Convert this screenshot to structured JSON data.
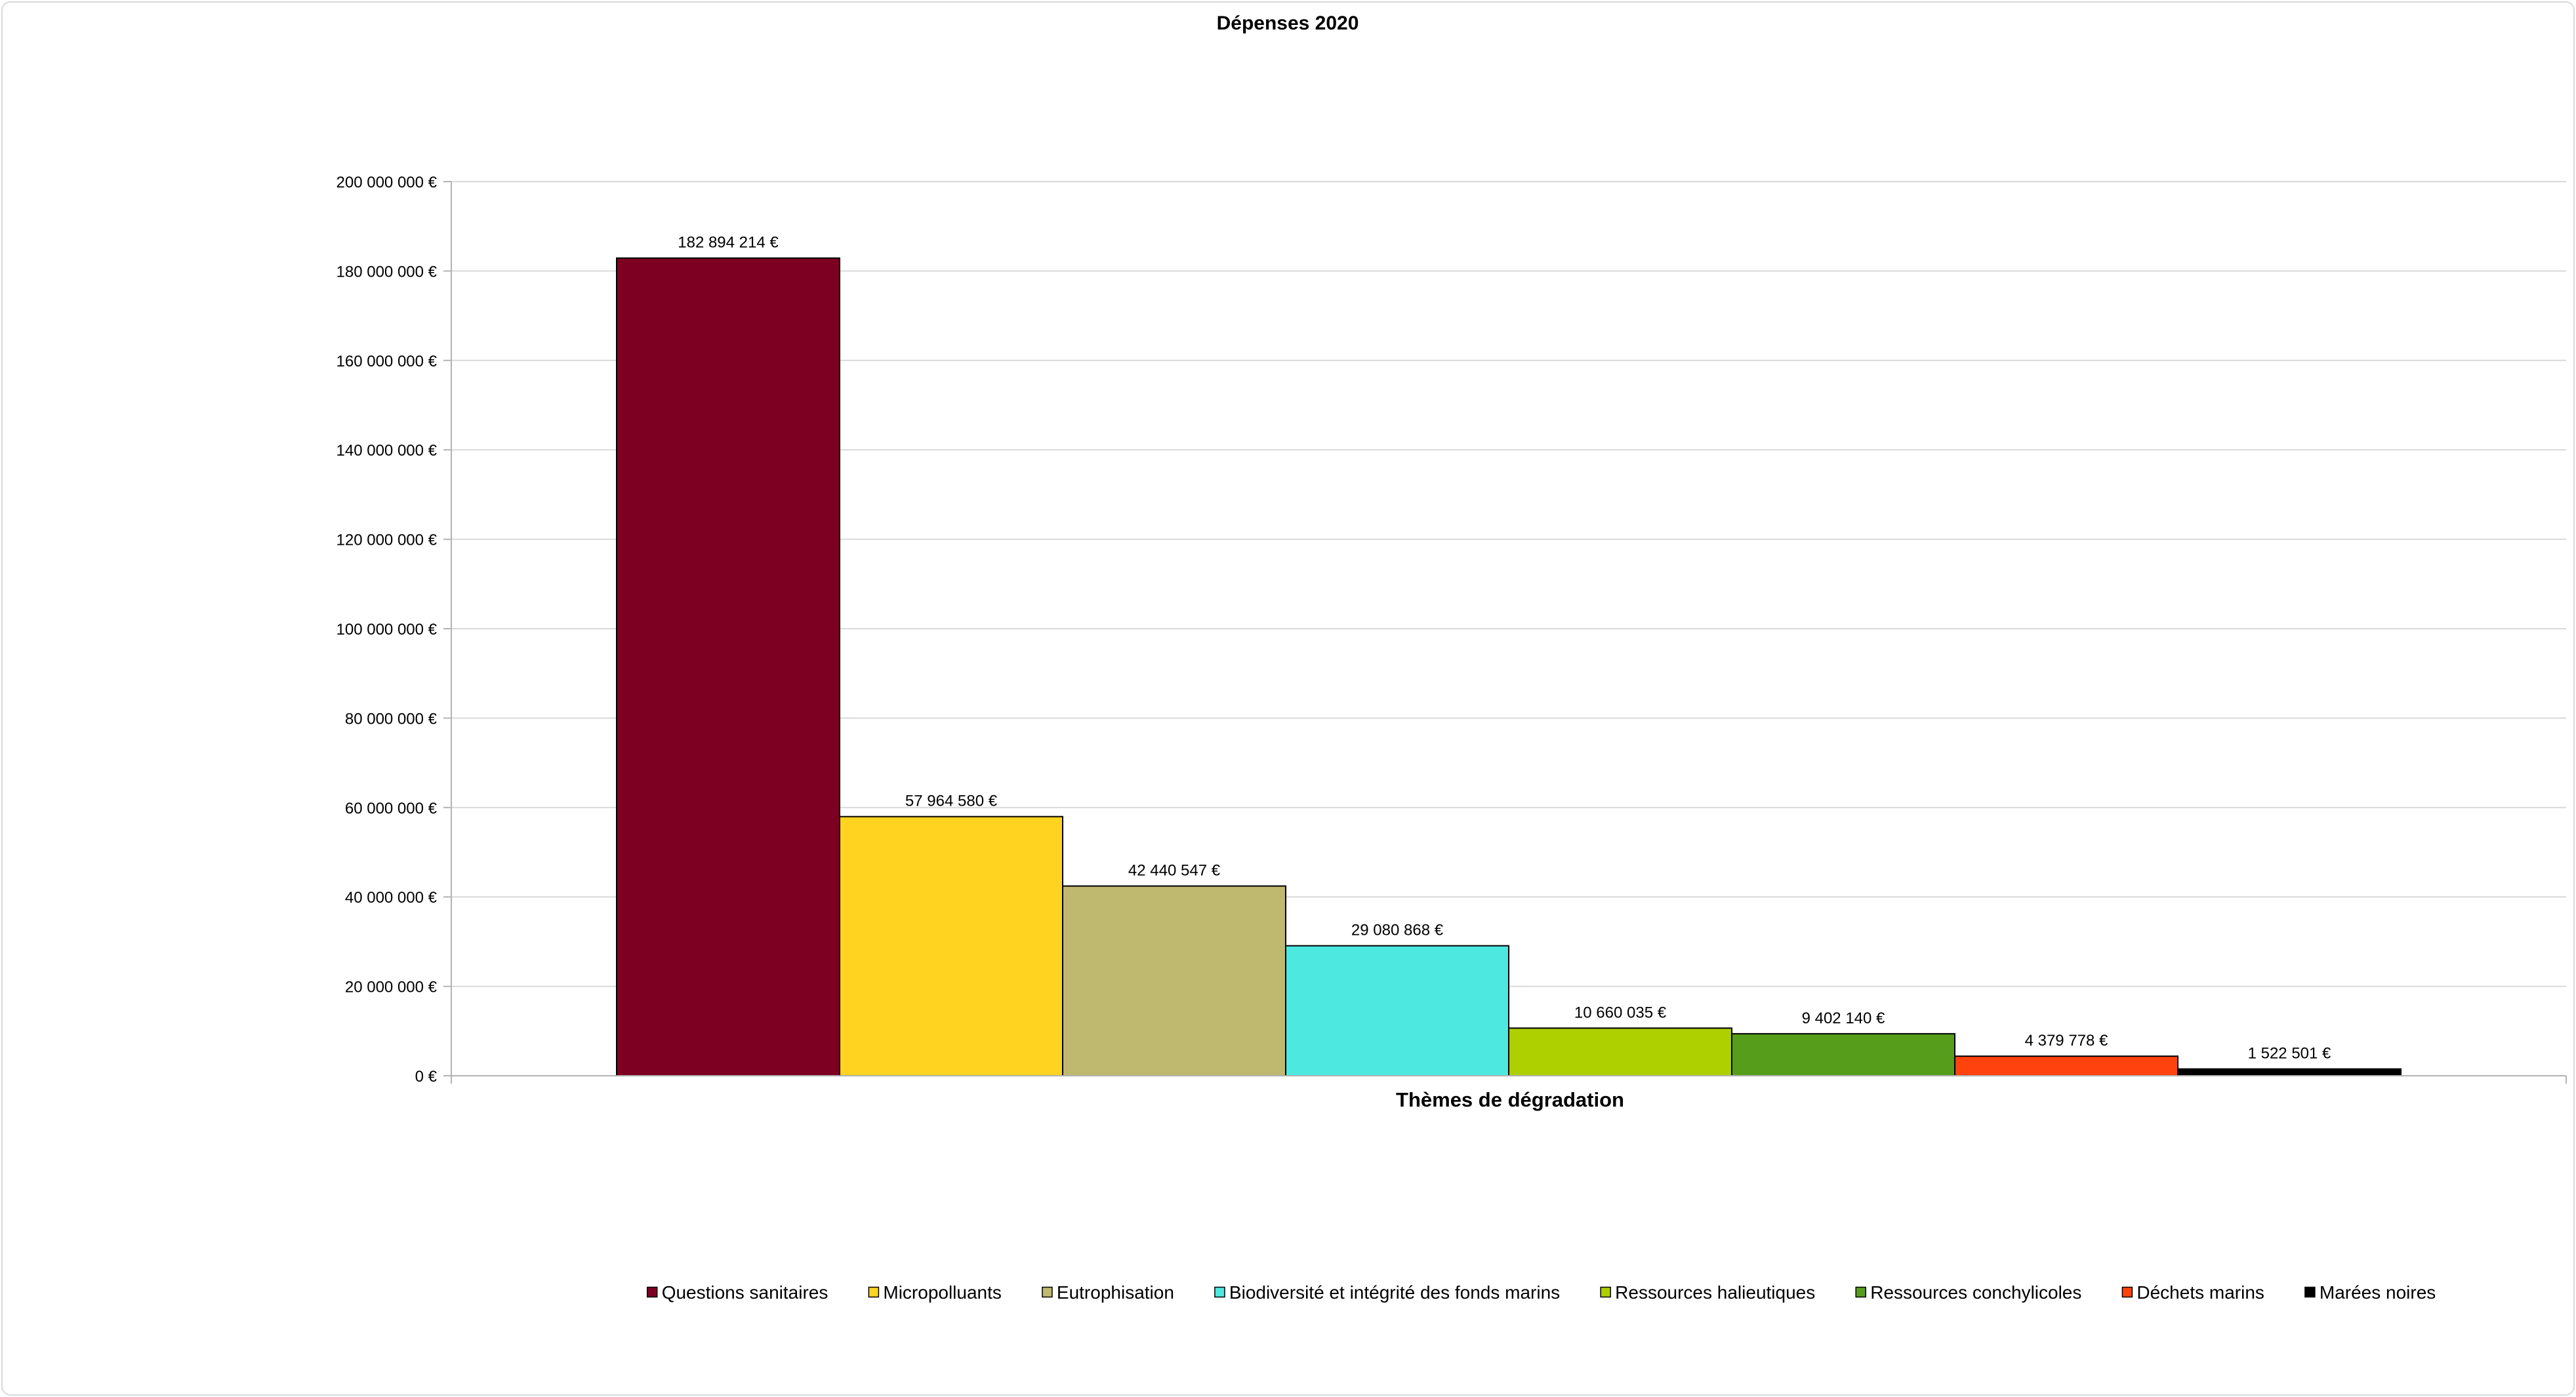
{
  "chart_data": {
    "type": "bar",
    "title": "Dépenses 2020",
    "xlabel": "Thèmes de dégradation",
    "ylabel": "",
    "ylim": [
      0,
      200000000
    ],
    "yticks": [
      0,
      20000000,
      40000000,
      60000000,
      80000000,
      100000000,
      120000000,
      140000000,
      160000000,
      180000000,
      200000000
    ],
    "ytick_labels": [
      "0 €",
      "20 000 000 €",
      "40 000 000 €",
      "60 000 000 €",
      "80 000 000 €",
      "100 000 000 €",
      "120 000 000 €",
      "140 000 000 €",
      "160 000 000 €",
      "180 000 000 €",
      "200 000 000 €"
    ],
    "grid": true,
    "legend_position": "bottom",
    "series": [
      {
        "name": "Questions sanitaires",
        "value": 182894214,
        "label": "182 894 214 €",
        "color": "#7d0023"
      },
      {
        "name": "Micropolluants",
        "value": 57964580,
        "label": "57 964 580 €",
        "color": "#ffd320"
      },
      {
        "name": "Eutrophisation",
        "value": 42440547,
        "label": "42 440 547 €",
        "color": "#bfb86f"
      },
      {
        "name": "Biodiversité et intégrité des fonds marins",
        "value": 29080868,
        "label": "29 080 868 €",
        "color": "#4de8e0"
      },
      {
        "name": "Ressources halieutiques",
        "value": 10660035,
        "label": "10 660 035 €",
        "color": "#aecf00"
      },
      {
        "name": "Ressources conchylicoles",
        "value": 9402140,
        "label": "9 402 140 €",
        "color": "#579d1c"
      },
      {
        "name": "Déchets marins",
        "value": 4379778,
        "label": "4 379 778 €",
        "color": "#ff420e"
      },
      {
        "name": "Marées noires",
        "value": 1522501,
        "label": "1 522 501 €",
        "color": "#000000"
      }
    ]
  }
}
